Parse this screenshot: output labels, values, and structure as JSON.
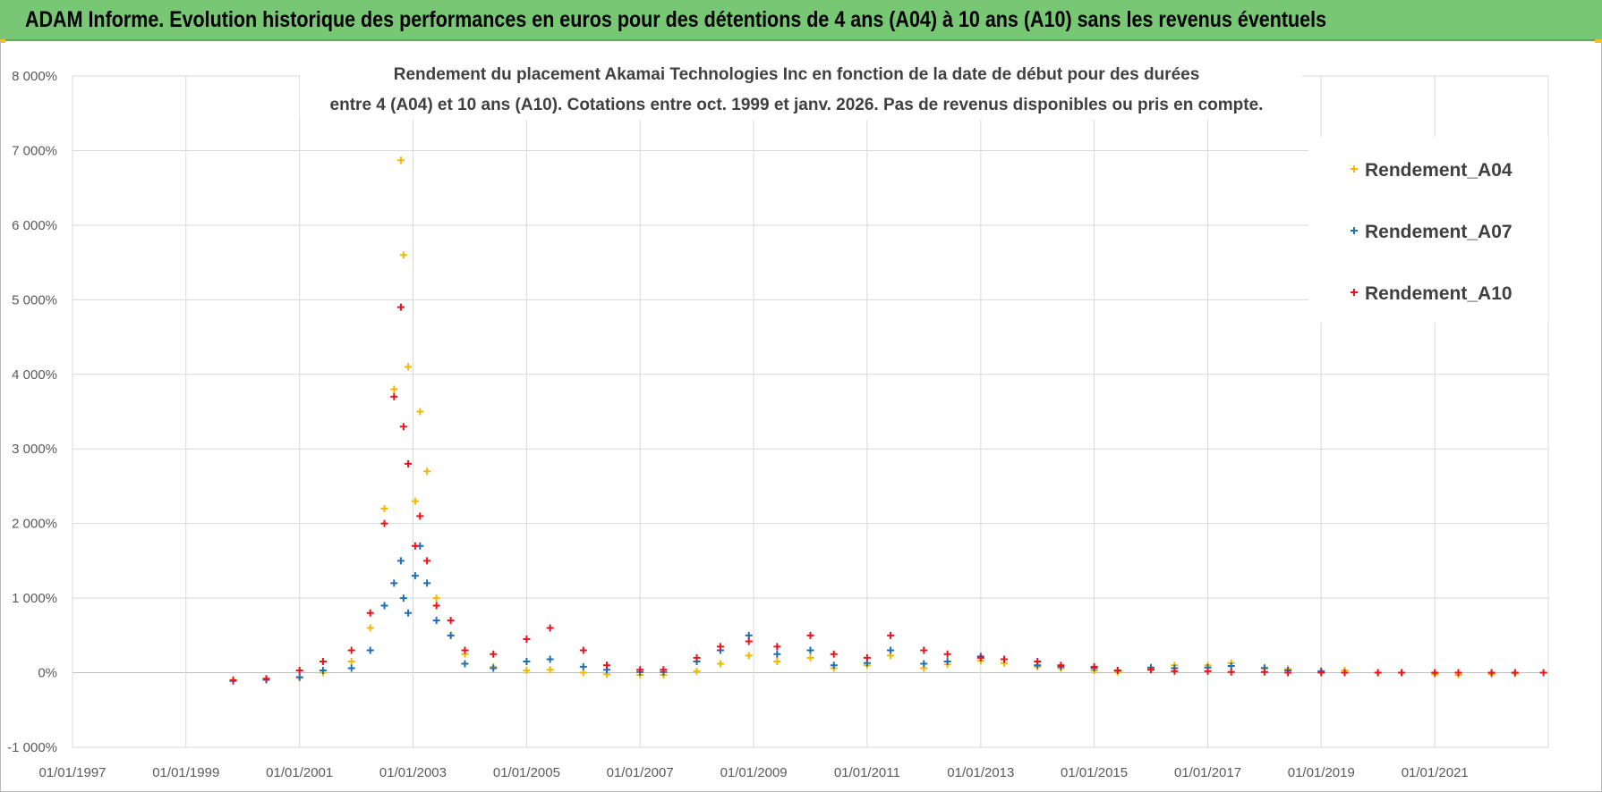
{
  "header": {
    "title": "ADAM Informe. Evolution historique des performances en euros pour des détentions de 4 ans (A04) à 10 ans (A10) sans les revenus éventuels"
  },
  "colors": {
    "header_bg": "#77c774",
    "series_A04": "#f5b800",
    "series_A07": "#1f6fb6",
    "series_A10": "#e8141b",
    "grid": "#d9d9d9"
  },
  "chart_data": {
    "type": "scatter",
    "title_line1": "Rendement du placement Akamai Technologies Inc en fonction de la date de début pour des durées",
    "title_line2": "entre 4 (A04) et 10 ans (A10). Cotations entre oct. 1999 et janv. 2026. Pas de revenus disponibles ou pris en compte.",
    "xlabel": "",
    "ylabel": "",
    "x_range": [
      "1997-01-01",
      "2023-01-01"
    ],
    "x_ticks": [
      "01/01/1997",
      "01/01/1999",
      "01/01/2001",
      "01/01/2003",
      "01/01/2005",
      "01/01/2007",
      "01/01/2009",
      "01/01/2011",
      "01/01/2013",
      "01/01/2015",
      "01/01/2017",
      "01/01/2019",
      "01/01/2021"
    ],
    "ylim": [
      -1000,
      8000
    ],
    "y_ticks": [
      "-1 000%",
      "0%",
      "1 000%",
      "2 000%",
      "3 000%",
      "4 000%",
      "5 000%",
      "6 000%",
      "7 000%",
      "8 000%"
    ],
    "grid": true,
    "legend_position": "top-right",
    "marker": "+",
    "series": [
      {
        "name": "Rendement_A04",
        "points": [
          [
            "1999-11-01",
            -100
          ],
          [
            "2000-06-01",
            -90
          ],
          [
            "2001-01-01",
            -70
          ],
          [
            "2001-06-01",
            0
          ],
          [
            "2001-12-01",
            150
          ],
          [
            "2002-04-01",
            600
          ],
          [
            "2002-07-01",
            2200
          ],
          [
            "2002-09-01",
            3800
          ],
          [
            "2002-10-15",
            6870
          ],
          [
            "2002-11-01",
            5600
          ],
          [
            "2002-12-01",
            4100
          ],
          [
            "2003-01-15",
            2300
          ],
          [
            "2003-02-15",
            3500
          ],
          [
            "2003-04-01",
            2700
          ],
          [
            "2003-06-01",
            1000
          ],
          [
            "2003-09-01",
            500
          ],
          [
            "2003-12-01",
            250
          ],
          [
            "2004-06-01",
            80
          ],
          [
            "2005-01-01",
            30
          ],
          [
            "2005-06-01",
            40
          ],
          [
            "2006-01-01",
            0
          ],
          [
            "2006-06-01",
            -20
          ],
          [
            "2007-01-01",
            -30
          ],
          [
            "2007-06-01",
            -30
          ],
          [
            "2008-01-01",
            20
          ],
          [
            "2008-06-01",
            120
          ],
          [
            "2008-12-01",
            230
          ],
          [
            "2009-06-01",
            150
          ],
          [
            "2010-01-01",
            200
          ],
          [
            "2010-06-01",
            60
          ],
          [
            "2011-01-01",
            100
          ],
          [
            "2011-06-01",
            230
          ],
          [
            "2012-01-01",
            60
          ],
          [
            "2012-06-01",
            110
          ],
          [
            "2013-01-01",
            160
          ],
          [
            "2013-06-01",
            130
          ],
          [
            "2014-01-01",
            80
          ],
          [
            "2014-06-01",
            60
          ],
          [
            "2015-01-01",
            30
          ],
          [
            "2015-06-01",
            10
          ],
          [
            "2016-01-01",
            60
          ],
          [
            "2016-06-01",
            100
          ],
          [
            "2017-01-01",
            100
          ],
          [
            "2017-06-01",
            130
          ],
          [
            "2018-01-01",
            70
          ],
          [
            "2018-06-01",
            50
          ],
          [
            "2019-01-01",
            20
          ],
          [
            "2019-06-01",
            30
          ],
          [
            "2020-01-01",
            0
          ],
          [
            "2020-06-01",
            0
          ],
          [
            "2021-01-01",
            -20
          ],
          [
            "2021-06-01",
            -30
          ],
          [
            "2022-01-01",
            -20
          ],
          [
            "2022-06-01",
            -10
          ]
        ]
      },
      {
        "name": "Rendement_A07",
        "points": [
          [
            "1999-11-01",
            -110
          ],
          [
            "2000-06-01",
            -95
          ],
          [
            "2001-01-01",
            -60
          ],
          [
            "2001-06-01",
            30
          ],
          [
            "2001-12-01",
            60
          ],
          [
            "2002-04-01",
            300
          ],
          [
            "2002-07-01",
            900
          ],
          [
            "2002-09-01",
            1200
          ],
          [
            "2002-10-15",
            1500
          ],
          [
            "2002-11-01",
            1000
          ],
          [
            "2002-12-01",
            800
          ],
          [
            "2003-01-15",
            1300
          ],
          [
            "2003-02-15",
            1700
          ],
          [
            "2003-04-01",
            1200
          ],
          [
            "2003-06-01",
            700
          ],
          [
            "2003-09-01",
            500
          ],
          [
            "2003-12-01",
            120
          ],
          [
            "2004-06-01",
            60
          ],
          [
            "2005-01-01",
            150
          ],
          [
            "2005-06-01",
            180
          ],
          [
            "2006-01-01",
            80
          ],
          [
            "2006-06-01",
            40
          ],
          [
            "2007-01-01",
            10
          ],
          [
            "2007-06-01",
            10
          ],
          [
            "2008-01-01",
            150
          ],
          [
            "2008-06-01",
            300
          ],
          [
            "2008-12-01",
            500
          ],
          [
            "2009-06-01",
            250
          ],
          [
            "2010-01-01",
            300
          ],
          [
            "2010-06-01",
            100
          ],
          [
            "2011-01-01",
            130
          ],
          [
            "2011-06-01",
            300
          ],
          [
            "2012-01-01",
            120
          ],
          [
            "2012-06-01",
            150
          ],
          [
            "2013-01-01",
            220
          ],
          [
            "2013-06-01",
            180
          ],
          [
            "2014-01-01",
            100
          ],
          [
            "2014-06-01",
            80
          ],
          [
            "2015-01-01",
            60
          ],
          [
            "2015-06-01",
            30
          ],
          [
            "2016-01-01",
            70
          ],
          [
            "2016-06-01",
            60
          ],
          [
            "2017-01-01",
            70
          ],
          [
            "2017-06-01",
            90
          ],
          [
            "2018-01-01",
            60
          ],
          [
            "2018-06-01",
            30
          ],
          [
            "2019-01-01",
            20
          ]
        ]
      },
      {
        "name": "Rendement_A10",
        "points": [
          [
            "1999-11-01",
            -100
          ],
          [
            "2000-06-01",
            -80
          ],
          [
            "2001-01-01",
            30
          ],
          [
            "2001-06-01",
            150
          ],
          [
            "2001-12-01",
            300
          ],
          [
            "2002-04-01",
            800
          ],
          [
            "2002-07-01",
            2000
          ],
          [
            "2002-09-01",
            3700
          ],
          [
            "2002-10-15",
            4900
          ],
          [
            "2002-11-01",
            3300
          ],
          [
            "2002-12-01",
            2800
          ],
          [
            "2003-01-15",
            1700
          ],
          [
            "2003-02-15",
            2100
          ],
          [
            "2003-04-01",
            1500
          ],
          [
            "2003-06-01",
            900
          ],
          [
            "2003-09-01",
            700
          ],
          [
            "2003-12-01",
            300
          ],
          [
            "2004-06-01",
            250
          ],
          [
            "2005-01-01",
            450
          ],
          [
            "2005-06-01",
            600
          ],
          [
            "2006-01-01",
            300
          ],
          [
            "2006-06-01",
            100
          ],
          [
            "2007-01-01",
            40
          ],
          [
            "2007-06-01",
            40
          ],
          [
            "2008-01-01",
            200
          ],
          [
            "2008-06-01",
            350
          ],
          [
            "2008-12-01",
            420
          ],
          [
            "2009-06-01",
            350
          ],
          [
            "2010-01-01",
            500
          ],
          [
            "2010-06-01",
            250
          ],
          [
            "2011-01-01",
            200
          ],
          [
            "2011-06-01",
            500
          ],
          [
            "2012-01-01",
            300
          ],
          [
            "2012-06-01",
            250
          ],
          [
            "2013-01-01",
            200
          ],
          [
            "2013-06-01",
            180
          ],
          [
            "2014-01-01",
            150
          ],
          [
            "2014-06-01",
            100
          ],
          [
            "2015-01-01",
            80
          ],
          [
            "2015-06-01",
            30
          ],
          [
            "2016-01-01",
            40
          ],
          [
            "2016-06-01",
            20
          ],
          [
            "2017-01-01",
            20
          ],
          [
            "2017-06-01",
            10
          ],
          [
            "2018-01-01",
            10
          ],
          [
            "2018-06-01",
            0
          ],
          [
            "2019-01-01",
            0
          ],
          [
            "2019-06-01",
            0
          ],
          [
            "2020-01-01",
            0
          ],
          [
            "2020-06-01",
            0
          ],
          [
            "2021-01-01",
            0
          ],
          [
            "2021-06-01",
            0
          ],
          [
            "2022-01-01",
            0
          ],
          [
            "2022-06-01",
            0
          ],
          [
            "2022-12-01",
            0
          ]
        ]
      }
    ]
  }
}
